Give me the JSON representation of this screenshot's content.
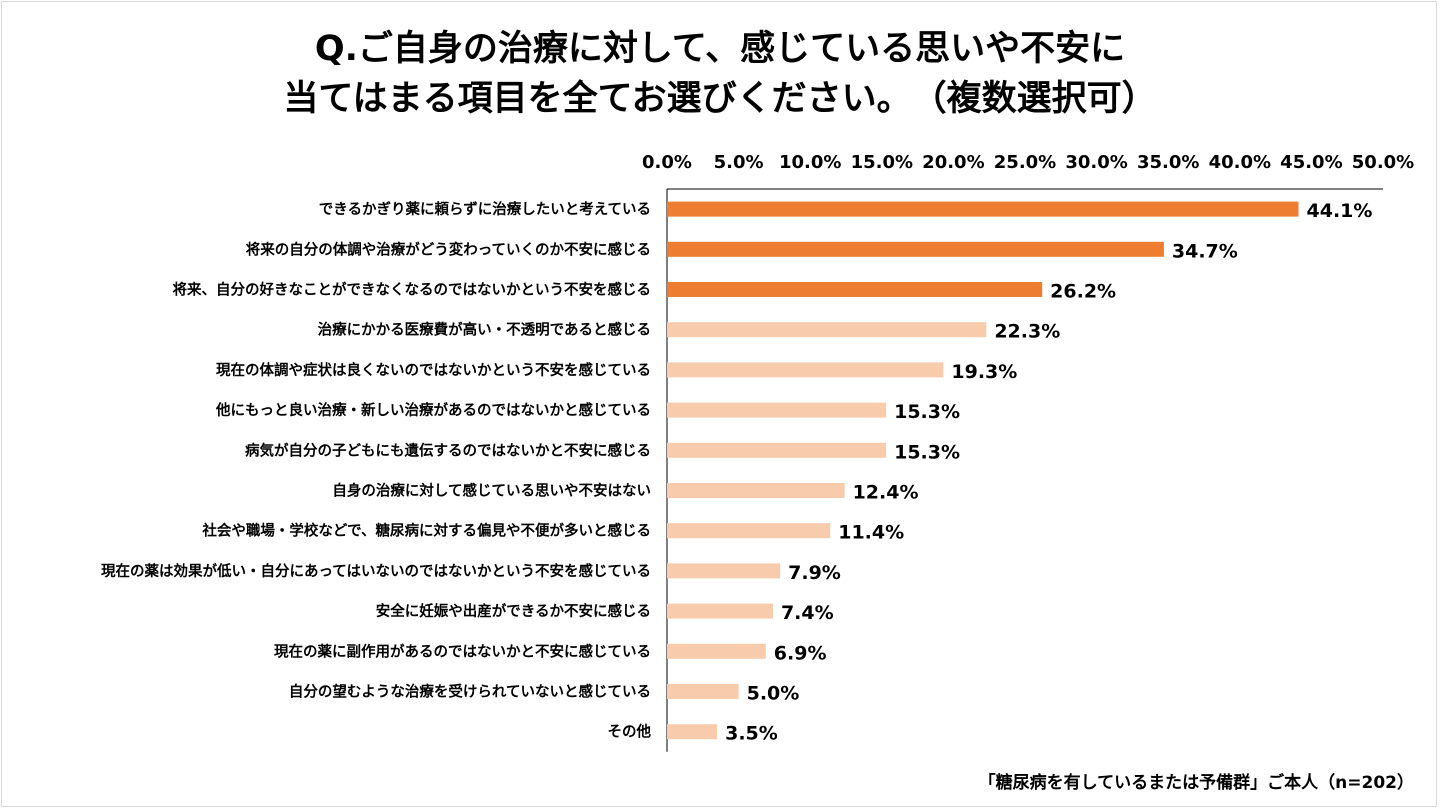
{
  "title": {
    "line1": "Q.ご自身の治療に対して、感じている思いや不安に",
    "line2": "当てはまる項目を全てお選びください。　（複数選択可）"
  },
  "footnote": "「糖尿病を有しているまたは予備群」ご本人（n=202）",
  "colors": {
    "highlight": "#ED7D31",
    "normal": "#F8CBAD",
    "axis": "#000000"
  },
  "chart_data": {
    "type": "bar",
    "orientation": "horizontal",
    "xlim": [
      0,
      50
    ],
    "ticks": [
      "0.0%",
      "5.0%",
      "10.0%",
      "15.0%",
      "20.0%",
      "25.0%",
      "30.0%",
      "35.0%",
      "40.0%",
      "45.0%",
      "50.0%"
    ],
    "tick_values": [
      0,
      5,
      10,
      15,
      20,
      25,
      30,
      35,
      40,
      45,
      50
    ],
    "axis_position": "top",
    "grid": false,
    "categories": [
      "できるかぎり薬に頼らずに治療したいと考えている",
      "将来の自分の体調や治療がどう変わっていくのか不安に感じる",
      "将来、自分の好きなことができなくなるのではないかという不安を感じる",
      "治療にかかる医療費が高い・不透明であると感じる",
      "現在の体調や症状は良くないのではないかという不安を感じている",
      "他にもっと良い治療・新しい治療があるのではないかと感じている",
      "病気が自分の子どもにも遺伝するのではないかと不安に感じる",
      "自身の治療に対して感じている思いや不安はない",
      "社会や職場・学校などで、糖尿病に対する偏見や不便が多いと感じる",
      "現在の薬は効果が低い・自分にあってはいないのではないかという不安を感じている",
      "安全に妊娠や出産ができるか不安に感じる",
      "現在の薬に副作用があるのではないかと不安に感じている",
      "自分の望むような治療を受けられていないと感じている",
      "その他"
    ],
    "values": [
      44.1,
      34.7,
      26.2,
      22.3,
      19.3,
      15.3,
      15.3,
      12.4,
      11.4,
      7.9,
      7.4,
      6.9,
      5.0,
      3.5
    ],
    "labels": [
      "44.1%",
      "34.7%",
      "26.2%",
      "22.3%",
      "19.3%",
      "15.3%",
      "15.3%",
      "12.4%",
      "11.4%",
      "7.9%",
      "7.4%",
      "6.9%",
      "5.0%",
      "3.5%"
    ],
    "highlighted_top_n": 3
  }
}
